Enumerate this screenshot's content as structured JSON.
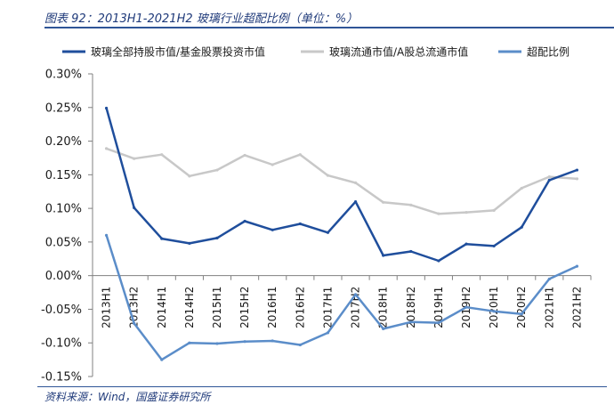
{
  "caption": "图表 92：2013H1-2021H2 玻璃行业超配比例（单位：%）",
  "source": "资料来源：Wind，国盛证券研究所",
  "colors": {
    "series1": "#1f4e9c",
    "series2": "#c8c8c8",
    "series3": "#5b8dc9",
    "axis": "#808080",
    "rule": "#2f5597"
  },
  "chart_data": {
    "type": "line",
    "title": "",
    "xlabel": "",
    "ylabel": "",
    "legend_position": "top",
    "grid": false,
    "ylim": [
      -0.0015,
      0.003
    ],
    "yticks": [
      0.003,
      0.0025,
      0.002,
      0.0015,
      0.001,
      0.0005,
      0.0,
      -0.0005,
      -0.001,
      -0.0015
    ],
    "ytick_labels": [
      "0.30%",
      "0.25%",
      "0.20%",
      "0.15%",
      "0.10%",
      "0.05%",
      "0.00%",
      "-0.05%",
      "-0.10%",
      "-0.15%"
    ],
    "categories": [
      "2013H1",
      "2013H2",
      "2014H1",
      "2014H2",
      "2015H1",
      "2015H2",
      "2016H1",
      "2016H2",
      "2017H1",
      "2017H2",
      "2018H1",
      "2018H2",
      "2019H1",
      "2019H2",
      "2020H1",
      "2020H2",
      "2021H1",
      "2021H2"
    ],
    "series": [
      {
        "name": "玻璃全部持股市值/基金股票投资市值",
        "values": [
          0.00249,
          0.00101,
          0.00055,
          0.00048,
          0.00056,
          0.00081,
          0.00068,
          0.00077,
          0.00064,
          0.0011,
          0.0003,
          0.00036,
          0.00022,
          0.00047,
          0.00044,
          0.00072,
          0.00142,
          0.00157
        ]
      },
      {
        "name": "玻璃流通市值/A股总流通市值",
        "values": [
          0.00189,
          0.00174,
          0.0018,
          0.00148,
          0.00157,
          0.00179,
          0.00165,
          0.0018,
          0.00149,
          0.00138,
          0.00109,
          0.00105,
          0.00092,
          0.00094,
          0.00097,
          0.0013,
          0.00147,
          0.00144
        ]
      },
      {
        "name": "超配比例",
        "values": [
          0.0006,
          -0.00071,
          -0.00125,
          -0.001,
          -0.00101,
          -0.00098,
          -0.00097,
          -0.00103,
          -0.00085,
          -0.00028,
          -0.00079,
          -0.00069,
          -0.0007,
          -0.00047,
          -0.00053,
          -0.00057,
          -5e-05,
          0.00014
        ]
      }
    ]
  }
}
